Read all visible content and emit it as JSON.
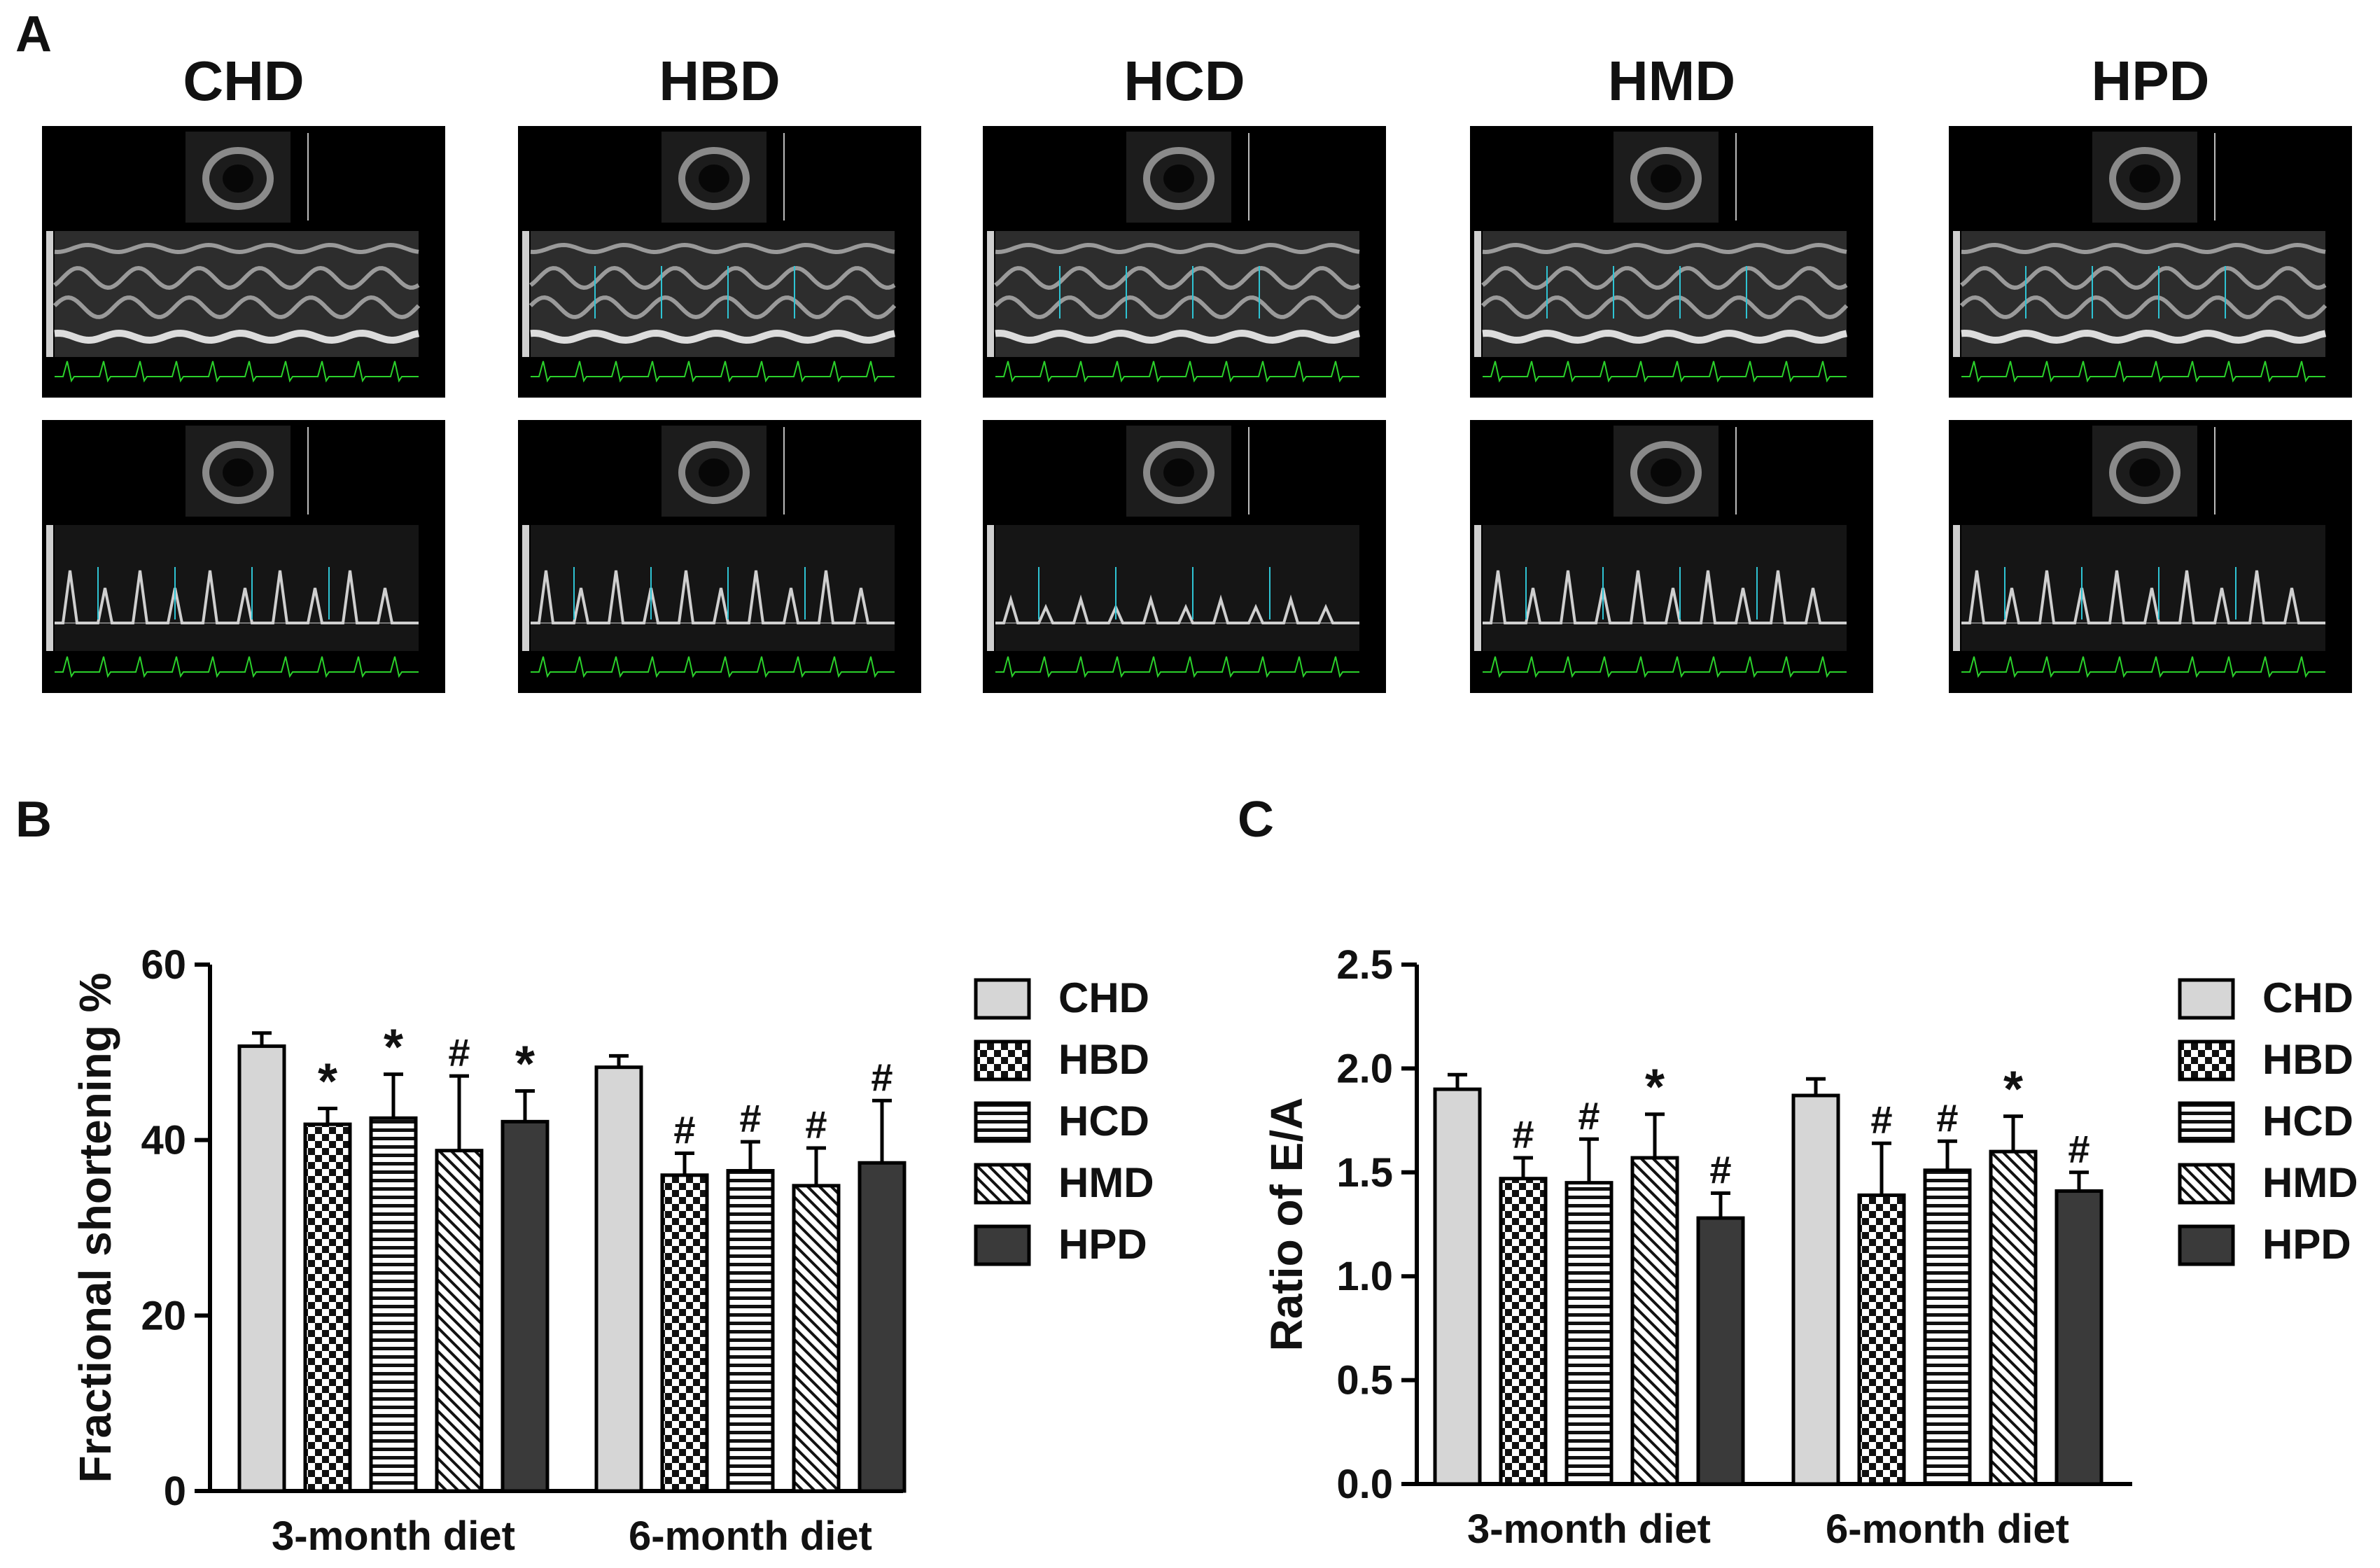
{
  "panels": {
    "a": "A",
    "b": "B",
    "c": "C"
  },
  "groups": [
    "CHD",
    "HBD",
    "HCD",
    "HMD",
    "HPD"
  ],
  "colors": {
    "CHD": "#d6d6d6",
    "HBD": "#111111",
    "HCD": "#111111",
    "HMD": "#111111",
    "HPD": "#3a3a3a",
    "echo_bg": "#000000",
    "ecg": "#2bd12b",
    "caliper": "#2ec4d4"
  },
  "chart_data": [
    {
      "type": "bar",
      "panel": "B",
      "categories": [
        "3-month diet",
        "6-month diet"
      ],
      "ylabel": "Fractional shortening %",
      "ylim": [
        0,
        60
      ],
      "yticks": [
        0,
        20,
        40,
        60
      ],
      "grid": false,
      "legend": "right",
      "series": [
        {
          "name": "CHD",
          "values": [
            50.7,
            48.3
          ],
          "errors": [
            1.5,
            1.3
          ],
          "marks": [
            "",
            ""
          ]
        },
        {
          "name": "HBD",
          "values": [
            41.8,
            36.0
          ],
          "errors": [
            1.8,
            2.5
          ],
          "marks": [
            "*",
            "#"
          ]
        },
        {
          "name": "HCD",
          "values": [
            42.5,
            36.5
          ],
          "errors": [
            5.0,
            3.3
          ],
          "marks": [
            "*",
            "#"
          ]
        },
        {
          "name": "HMD",
          "values": [
            38.8,
            34.8
          ],
          "errors": [
            8.5,
            4.3
          ],
          "marks": [
            "#",
            "#"
          ]
        },
        {
          "name": "HPD",
          "values": [
            42.1,
            37.4
          ],
          "errors": [
            3.5,
            7.1
          ],
          "marks": [
            "*",
            "#"
          ]
        }
      ]
    },
    {
      "type": "bar",
      "panel": "C",
      "categories": [
        "3-month diet",
        "6-month diet"
      ],
      "ylabel": "Ratio of E/A",
      "ylim": [
        0,
        2.5
      ],
      "yticks": [
        "0.0",
        "0.5",
        "1.0",
        "1.5",
        "2.0",
        "2.5"
      ],
      "grid": false,
      "legend": "right",
      "series": [
        {
          "name": "CHD",
          "values": [
            1.9,
            1.87
          ],
          "errors": [
            0.07,
            0.08
          ],
          "marks": [
            "",
            ""
          ]
        },
        {
          "name": "HBD",
          "values": [
            1.47,
            1.39
          ],
          "errors": [
            0.1,
            0.25
          ],
          "marks": [
            "#",
            "#"
          ]
        },
        {
          "name": "HCD",
          "values": [
            1.45,
            1.51
          ],
          "errors": [
            0.21,
            0.14
          ],
          "marks": [
            "#",
            "#"
          ]
        },
        {
          "name": "HMD",
          "values": [
            1.57,
            1.6
          ],
          "errors": [
            0.21,
            0.17
          ],
          "marks": [
            "*",
            "*"
          ]
        },
        {
          "name": "HPD",
          "values": [
            1.28,
            1.41
          ],
          "errors": [
            0.12,
            0.09
          ],
          "marks": [
            "#",
            "#"
          ]
        }
      ]
    }
  ]
}
